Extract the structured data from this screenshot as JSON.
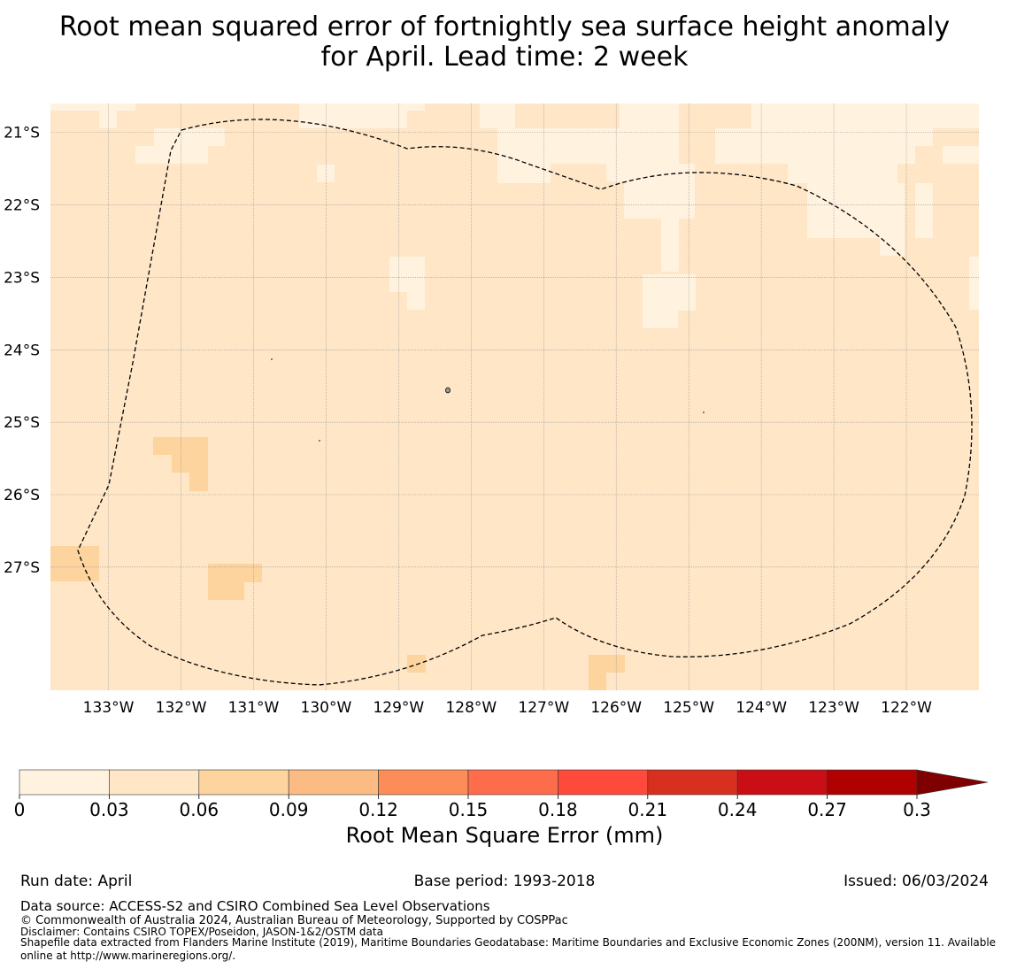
{
  "title_line1": "Root mean squared error of fortnightly sea surface height anomaly",
  "title_line2": "for April. Lead time: 2 week",
  "map": {
    "lon_min": -133.8,
    "lon_max": -121.0,
    "lat_max": -20.6,
    "lat_min": -28.7,
    "lat_ticks": [
      {
        "value": -21,
        "label": "21°S"
      },
      {
        "value": -22,
        "label": "22°S"
      },
      {
        "value": -23,
        "label": "23°S"
      },
      {
        "value": -24,
        "label": "24°S"
      },
      {
        "value": -25,
        "label": "25°S"
      },
      {
        "value": -26,
        "label": "26°S"
      },
      {
        "value": -27,
        "label": "27°S"
      }
    ],
    "lon_ticks": [
      {
        "value": -133,
        "label": "133°W"
      },
      {
        "value": -132,
        "label": "132°W"
      },
      {
        "value": -131,
        "label": "131°W"
      },
      {
        "value": -130,
        "label": "130°W"
      },
      {
        "value": -129,
        "label": "129°W"
      },
      {
        "value": -128,
        "label": "128°W"
      },
      {
        "value": -127,
        "label": "127°W"
      },
      {
        "value": -126,
        "label": "126°W"
      },
      {
        "value": -125,
        "label": "125°W"
      },
      {
        "value": -124,
        "label": "124°W"
      },
      {
        "value": -123,
        "label": "123°W"
      },
      {
        "value": -122,
        "label": "122°W"
      }
    ]
  },
  "colorbar": {
    "ticks": [
      "0",
      "0.03",
      "0.06",
      "0.09",
      "0.12",
      "0.15",
      "0.18",
      "0.21",
      "0.24",
      "0.27",
      "0.3"
    ],
    "colors": [
      "#fff2df",
      "#fee6c7",
      "#fdd39e",
      "#fdbb84",
      "#fc8d59",
      "#fe6d4b",
      "#fd4a3a",
      "#d7301f",
      "#c90f15",
      "#b00000"
    ],
    "extend_color": "#7f0000",
    "label": "Root Mean Square Error (mm)"
  },
  "footer": {
    "run_date": "Run date: April",
    "base_period": "Base period: 1993-2018",
    "issued": "Issued: 06/03/2024",
    "data_source": "Data source: ACCESS-S2 and CSIRO Combined Sea Level Observations",
    "copyright": "© Commonwealth of Australia 2024, Australian Bureau of Meteorology, Supported by COSPPac",
    "disclaimer": "Disclaimer: Contains CSIRO TOPEX/Poseidon, JASON-1&2/OSTM data",
    "shapefile_line1": "Shapefile data extracted from Flanders Marine Institute (2019), Maritime Boundaries Geodatabase: Maritime Boundaries and Exclusive Economic Zones (200NM), version 11. Available",
    "shapefile_line2": "online at http://www.marineregions.org/."
  }
}
